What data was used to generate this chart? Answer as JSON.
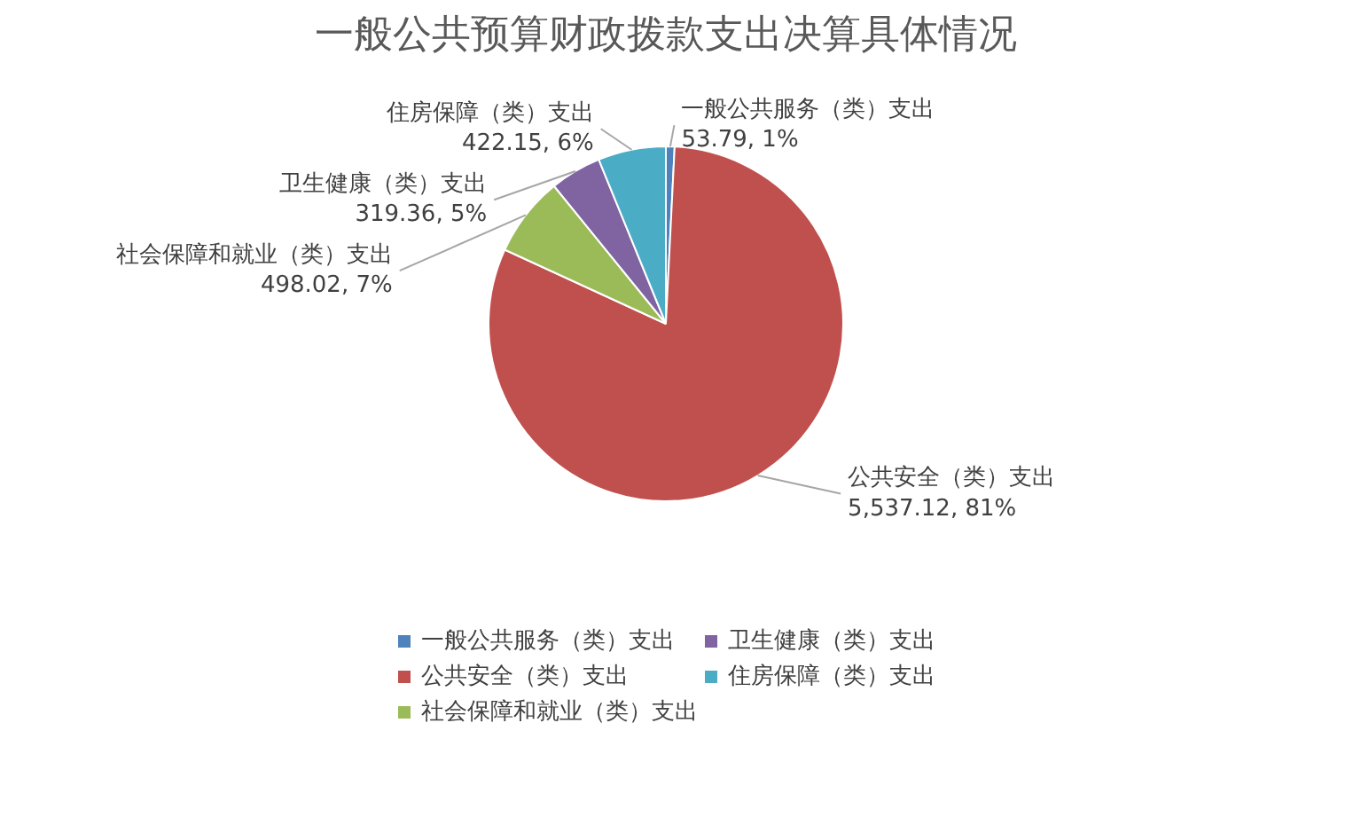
{
  "chart_data": {
    "type": "pie",
    "title": "一般公共预算财政拨款支出决算具体情况",
    "categories": [
      "一般公共服务（类）支出",
      "公共安全（类）支出",
      "社会保障和就业（类）支出",
      "卫生健康（类）支出",
      "住房保障（类）支出"
    ],
    "values": [
      53.79,
      5537.12,
      498.02,
      319.36,
      422.15
    ],
    "colors": [
      "#4f81bd",
      "#c0504d",
      "#9bbb59",
      "#8064a2",
      "#4bacc6"
    ],
    "value_labels": [
      "53.79, 1%",
      "5,537.12, 81%",
      "498.02, 7%",
      "319.36, 5%",
      "422.15, 6%"
    ],
    "legend": "bottom"
  }
}
